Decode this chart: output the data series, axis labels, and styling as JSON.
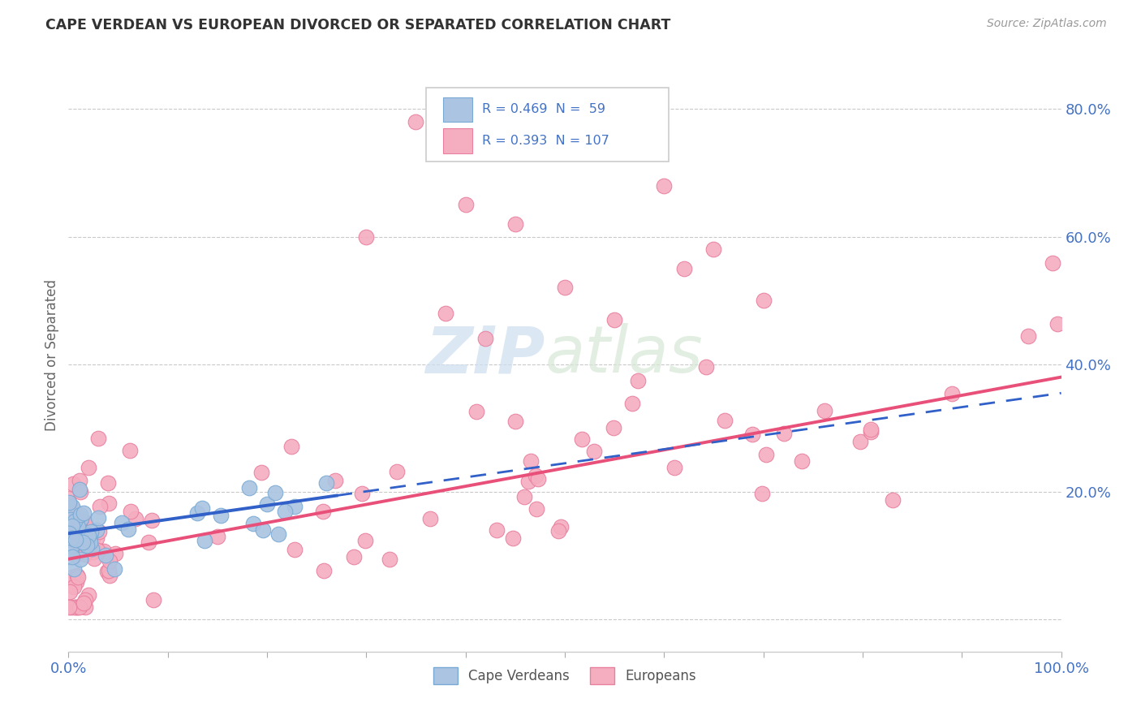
{
  "title": "CAPE VERDEAN VS EUROPEAN DIVORCED OR SEPARATED CORRELATION CHART",
  "source": "Source: ZipAtlas.com",
  "ylabel": "Divorced or Separated",
  "xlim": [
    0,
    1.0
  ],
  "ylim": [
    -0.05,
    0.88
  ],
  "cv_color": "#aac4e2",
  "eu_color": "#f5adc0",
  "cv_edge": "#7aaad4",
  "eu_edge": "#e880a0",
  "cv_line_color": "#3060c8",
  "eu_line_color": "#e8507a",
  "background_color": "#ffffff",
  "grid_color": "#cccccc",
  "title_color": "#333333",
  "source_color": "#999999",
  "axis_color": "#4472c4",
  "label_color": "#666666",
  "watermark_color": "#d8e8f0",
  "cv_r": 0.469,
  "cv_n": 59,
  "eu_r": 0.393,
  "eu_n": 107,
  "cv_slope": 0.22,
  "cv_intercept": 0.135,
  "eu_slope": 0.285,
  "eu_intercept": 0.095
}
